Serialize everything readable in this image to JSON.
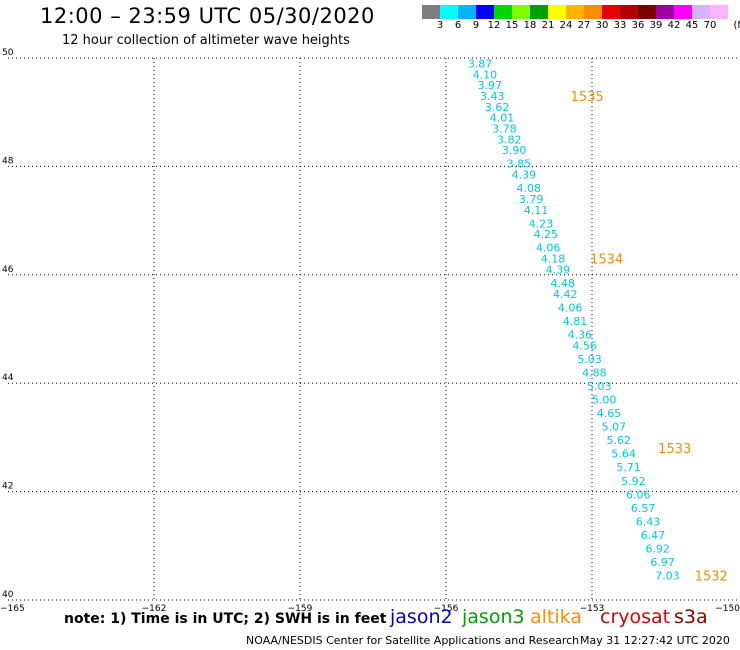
{
  "header": {
    "title": "12:00 – 23:59 UTC 05/30/2020",
    "subtitle": "12 hour collection of altimeter wave heights"
  },
  "color_scale": {
    "swatches": [
      "#7f7f7f",
      "#00ffff",
      "#00b3ff",
      "#0000ff",
      "#00d800",
      "#7fff00",
      "#00a000",
      "#ffff00",
      "#ffb400",
      "#ff8c00",
      "#e60000",
      "#b40000",
      "#780000",
      "#a000a0",
      "#ff00ff",
      "#d2b4ff",
      "#ffb4ff"
    ],
    "ticks": [
      "3",
      "6",
      "9",
      "12",
      "15",
      "18",
      "21",
      "24",
      "27",
      "30",
      "33",
      "36",
      "39",
      "42",
      "45",
      "70"
    ],
    "unit": "(ft)"
  },
  "chart_data": {
    "type": "scatter",
    "title": "12:00 – 23:59 UTC 05/30/2020",
    "subtitle": "12 hour collection of altimeter wave heights",
    "xlim": [
      -165,
      -150
    ],
    "ylim": [
      40,
      50
    ],
    "grid": true,
    "x_tick_labels": [
      "−165",
      "−162",
      "−159",
      "−156",
      "−153",
      "−150"
    ],
    "y_tick_labels": [
      "50",
      "48",
      "46",
      "44",
      "42",
      "40"
    ],
    "series": [
      {
        "satellite": "jason3",
        "color": "#00c8e6",
        "points": [
          {
            "lon": -155.3,
            "lat": 49.9,
            "swh": "3.87"
          },
          {
            "lon": -155.2,
            "lat": 49.7,
            "swh": "4.10"
          },
          {
            "lon": -155.1,
            "lat": 49.5,
            "swh": "3.97"
          },
          {
            "lon": -155.05,
            "lat": 49.3,
            "swh": "3.43"
          },
          {
            "lon": -154.95,
            "lat": 49.1,
            "swh": "3.62"
          },
          {
            "lon": -154.85,
            "lat": 48.9,
            "swh": "4.01"
          },
          {
            "lon": -154.8,
            "lat": 48.7,
            "swh": "3.78"
          },
          {
            "lon": -154.7,
            "lat": 48.5,
            "swh": "3.82"
          },
          {
            "lon": -154.6,
            "lat": 48.3,
            "swh": "3.90"
          },
          {
            "lon": -154.5,
            "lat": 48.05,
            "swh": "3.85"
          },
          {
            "lon": -154.4,
            "lat": 47.85,
            "swh": "4.39"
          },
          {
            "lon": -154.3,
            "lat": 47.6,
            "swh": "4.08"
          },
          {
            "lon": -154.25,
            "lat": 47.4,
            "swh": "3.79"
          },
          {
            "lon": -154.15,
            "lat": 47.2,
            "swh": "4.11"
          },
          {
            "lon": -154.05,
            "lat": 46.95,
            "swh": "4.23"
          },
          {
            "lon": -153.95,
            "lat": 46.75,
            "swh": "4.25"
          },
          {
            "lon": -153.9,
            "lat": 46.5,
            "swh": "4.06"
          },
          {
            "lon": -153.8,
            "lat": 46.3,
            "swh": "4.18"
          },
          {
            "lon": -153.7,
            "lat": 46.1,
            "swh": "4.39"
          },
          {
            "lon": -153.6,
            "lat": 45.85,
            "swh": "4.48"
          },
          {
            "lon": -153.55,
            "lat": 45.65,
            "swh": "4.42"
          },
          {
            "lon": -153.45,
            "lat": 45.4,
            "swh": "4.06"
          },
          {
            "lon": -153.35,
            "lat": 45.15,
            "swh": "4.81"
          },
          {
            "lon": -153.25,
            "lat": 44.9,
            "swh": "4.36"
          },
          {
            "lon": -153.15,
            "lat": 44.7,
            "swh": "4.56"
          },
          {
            "lon": -153.05,
            "lat": 44.45,
            "swh": "5.03"
          },
          {
            "lon": -152.95,
            "lat": 44.2,
            "swh": "4.88"
          },
          {
            "lon": -152.85,
            "lat": 43.95,
            "swh": "5.03"
          },
          {
            "lon": -152.75,
            "lat": 43.7,
            "swh": "5.00"
          },
          {
            "lon": -152.65,
            "lat": 43.45,
            "swh": "4.65"
          },
          {
            "lon": -152.55,
            "lat": 43.2,
            "swh": "5.07"
          },
          {
            "lon": -152.45,
            "lat": 42.95,
            "swh": "5.62"
          },
          {
            "lon": -152.35,
            "lat": 42.7,
            "swh": "5.64"
          },
          {
            "lon": -152.25,
            "lat": 42.45,
            "swh": "5.71"
          },
          {
            "lon": -152.15,
            "lat": 42.2,
            "swh": "5.92"
          },
          {
            "lon": -152.05,
            "lat": 41.95,
            "swh": "6.06"
          },
          {
            "lon": -151.95,
            "lat": 41.7,
            "swh": "6.57"
          },
          {
            "lon": -151.85,
            "lat": 41.45,
            "swh": "6.43"
          },
          {
            "lon": -151.75,
            "lat": 41.2,
            "swh": "6.47"
          },
          {
            "lon": -151.65,
            "lat": 40.95,
            "swh": "6.92"
          },
          {
            "lon": -151.55,
            "lat": 40.7,
            "swh": "6.97"
          },
          {
            "lon": -151.45,
            "lat": 40.45,
            "swh": "7.03"
          }
        ]
      }
    ],
    "time_labels": [
      {
        "text": "1535",
        "lon": -153.1,
        "lat": 49.3,
        "color": "#ff8c00"
      },
      {
        "text": "1534",
        "lon": -152.7,
        "lat": 46.3,
        "color": "#ff8c00"
      },
      {
        "text": "1533",
        "lon": -151.3,
        "lat": 42.8,
        "color": "#ff8c00"
      },
      {
        "text": "1532",
        "lon": -150.55,
        "lat": 40.45,
        "color": "#ff8c00"
      }
    ]
  },
  "footer": {
    "note": "note:  1) Time is in UTC;  2) SWH is in feet",
    "satellites": [
      {
        "name": "jason2",
        "color": "#0000c8"
      },
      {
        "name": "jason3",
        "color": "#00a000"
      },
      {
        "name": "altika",
        "color": "#ff8c00"
      },
      {
        "name": "cryosat",
        "color": "#dc0000"
      },
      {
        "name": "s3a",
        "color": "#8b0000"
      }
    ],
    "credit": "NOAA/NESDIS Center for Satellite Applications and Research",
    "timestamp": "May 31 12:27:42 UTC 2020"
  }
}
